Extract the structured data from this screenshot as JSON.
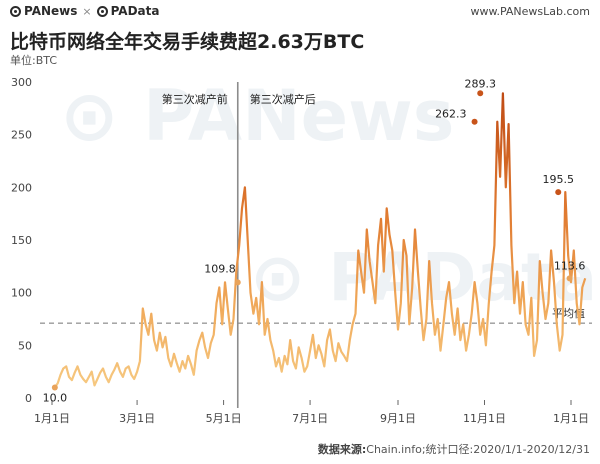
{
  "header": {
    "brand_left": "PANews",
    "brand_sep": "×",
    "brand_right": "PAData",
    "site": "www.PANewsLab.com"
  },
  "title": "比特币网络全年交易手续费超2.63万BTC",
  "unit_label": "单位:BTC",
  "footer": {
    "source_label": "数据来源:",
    "source_text": "Chain.info;统计口径:2020/1/1-2020/12/31"
  },
  "colors": {
    "line_low": "#f5c57a",
    "line_high": "#c8541a",
    "avg_line": "#9a9a9a",
    "divider": "#8c8c8c",
    "watermark": "#eef2f5"
  },
  "chart_data": {
    "type": "line",
    "title": "比特币网络全年交易手续费超2.63万BTC",
    "ylabel": "单位:BTC",
    "ylim": [
      0,
      300
    ],
    "yticks": [
      0,
      50,
      100,
      150,
      200,
      250,
      300
    ],
    "x_start": "2020-01-01",
    "x_end": "2021-01-01",
    "xticks": [
      {
        "date": "2020-01-01",
        "label": "1月1日"
      },
      {
        "date": "2020-03-01",
        "label": "3月1日"
      },
      {
        "date": "2020-05-01",
        "label": "5月1日"
      },
      {
        "date": "2020-07-01",
        "label": "7月1日"
      },
      {
        "date": "2020-09-01",
        "label": "9月1日"
      },
      {
        "date": "2020-11-01",
        "label": "11月1日"
      },
      {
        "date": "2021-01-01",
        "label": "1月1日"
      }
    ],
    "average": 71,
    "average_label": "平均值",
    "halving": {
      "date": "2020-05-11",
      "before_label": "第三次减产前",
      "after_label": "第三次减产后"
    },
    "annotations": [
      {
        "date": "2020-01-03",
        "value": 10.0,
        "label": "10.0"
      },
      {
        "date": "2020-05-11",
        "value": 109.8,
        "label": "109.8"
      },
      {
        "date": "2020-10-25",
        "value": 262.3,
        "label": "262.3"
      },
      {
        "date": "2020-10-29",
        "value": 289.3,
        "label": "289.3"
      },
      {
        "date": "2020-12-23",
        "value": 195.5,
        "label": "195.5"
      },
      {
        "date": "2020-12-31",
        "value": 113.6,
        "label": "113.6"
      }
    ],
    "series": [
      {
        "step_days": 2,
        "start": "2020-01-03",
        "values": [
          10,
          14,
          22,
          28,
          30,
          20,
          17,
          24,
          30,
          22,
          18,
          15,
          20,
          25,
          12,
          18,
          24,
          28,
          20,
          15,
          22,
          27,
          33,
          25,
          20,
          28,
          30,
          22,
          18,
          25,
          35,
          85,
          70,
          60,
          80,
          55,
          45,
          62,
          48,
          58,
          38,
          30,
          42,
          33,
          25,
          35,
          28,
          40,
          32,
          22,
          45,
          55,
          62,
          48,
          38,
          52,
          60,
          90,
          105,
          70,
          109.8,
          85,
          60,
          75,
          120,
          145,
          180,
          200,
          150,
          100,
          80,
          95,
          70,
          110,
          60,
          75,
          55,
          45,
          30,
          38,
          25,
          40,
          32,
          55,
          35,
          28,
          48,
          38,
          25,
          30,
          45,
          60,
          38,
          50,
          42,
          30,
          55,
          65,
          45,
          35,
          52,
          44,
          40,
          35,
          55,
          70,
          80,
          140,
          120,
          100,
          160,
          130,
          110,
          90,
          145,
          170,
          120,
          180,
          155,
          140,
          100,
          65,
          90,
          150,
          135,
          70,
          105,
          160,
          120,
          85,
          55,
          75,
          130,
          90,
          60,
          75,
          45,
          70,
          95,
          110,
          80,
          60,
          85,
          55,
          70,
          45,
          60,
          80,
          110,
          90,
          60,
          75,
          50,
          90,
          120,
          145,
          262.3,
          210,
          289.3,
          200,
          260,
          145,
          90,
          120,
          80,
          110,
          70,
          60,
          95,
          40,
          55,
          130,
          100,
          75,
          90,
          140,
          110,
          70,
          45,
          60,
          195.5,
          135,
          110,
          140,
          90,
          70,
          105,
          113.6
        ]
      }
    ]
  }
}
